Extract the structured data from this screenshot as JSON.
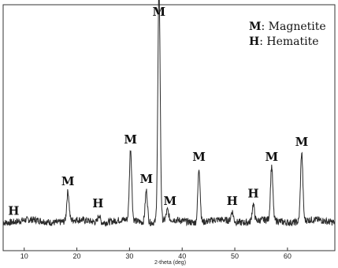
{
  "chart_data": {
    "type": "line",
    "xlabel": "2-theta (deg)",
    "ylabel": "",
    "xlim": [
      6,
      69
    ],
    "grid": false,
    "x_ticks": [
      10,
      20,
      30,
      40,
      50,
      60
    ],
    "legend": [
      {
        "key": "M",
        "name": "Magnetite"
      },
      {
        "key": "H",
        "name": "Hematite"
      }
    ],
    "legend_position": "top-right",
    "series": [
      {
        "color": "#2a2a2a",
        "baseline": 0.12,
        "peaks": [
          {
            "x": 18.3,
            "height": 0.12
          },
          {
            "x": 24.2,
            "height": 0.03
          },
          {
            "x": 30.2,
            "height": 0.29
          },
          {
            "x": 33.2,
            "height": 0.13
          },
          {
            "x": 35.6,
            "height": 0.95
          },
          {
            "x": 37.2,
            "height": 0.04
          },
          {
            "x": 43.2,
            "height": 0.22
          },
          {
            "x": 49.5,
            "height": 0.04
          },
          {
            "x": 53.5,
            "height": 0.07
          },
          {
            "x": 57.0,
            "height": 0.22
          },
          {
            "x": 62.7,
            "height": 0.28
          }
        ]
      }
    ],
    "peak_annotations": [
      {
        "label": "H",
        "x": 8.0
      },
      {
        "label": "M",
        "x": 18.3
      },
      {
        "label": "H",
        "x": 24.0
      },
      {
        "label": "M",
        "x": 30.2
      },
      {
        "label": "M",
        "x": 33.2
      },
      {
        "label": "M",
        "x": 35.6
      },
      {
        "label": "M",
        "x": 37.7
      },
      {
        "label": "M",
        "x": 43.2
      },
      {
        "label": "H",
        "x": 49.5
      },
      {
        "label": "H",
        "x": 53.5
      },
      {
        "label": "M",
        "x": 57.0
      },
      {
        "label": "M",
        "x": 62.7
      }
    ]
  }
}
